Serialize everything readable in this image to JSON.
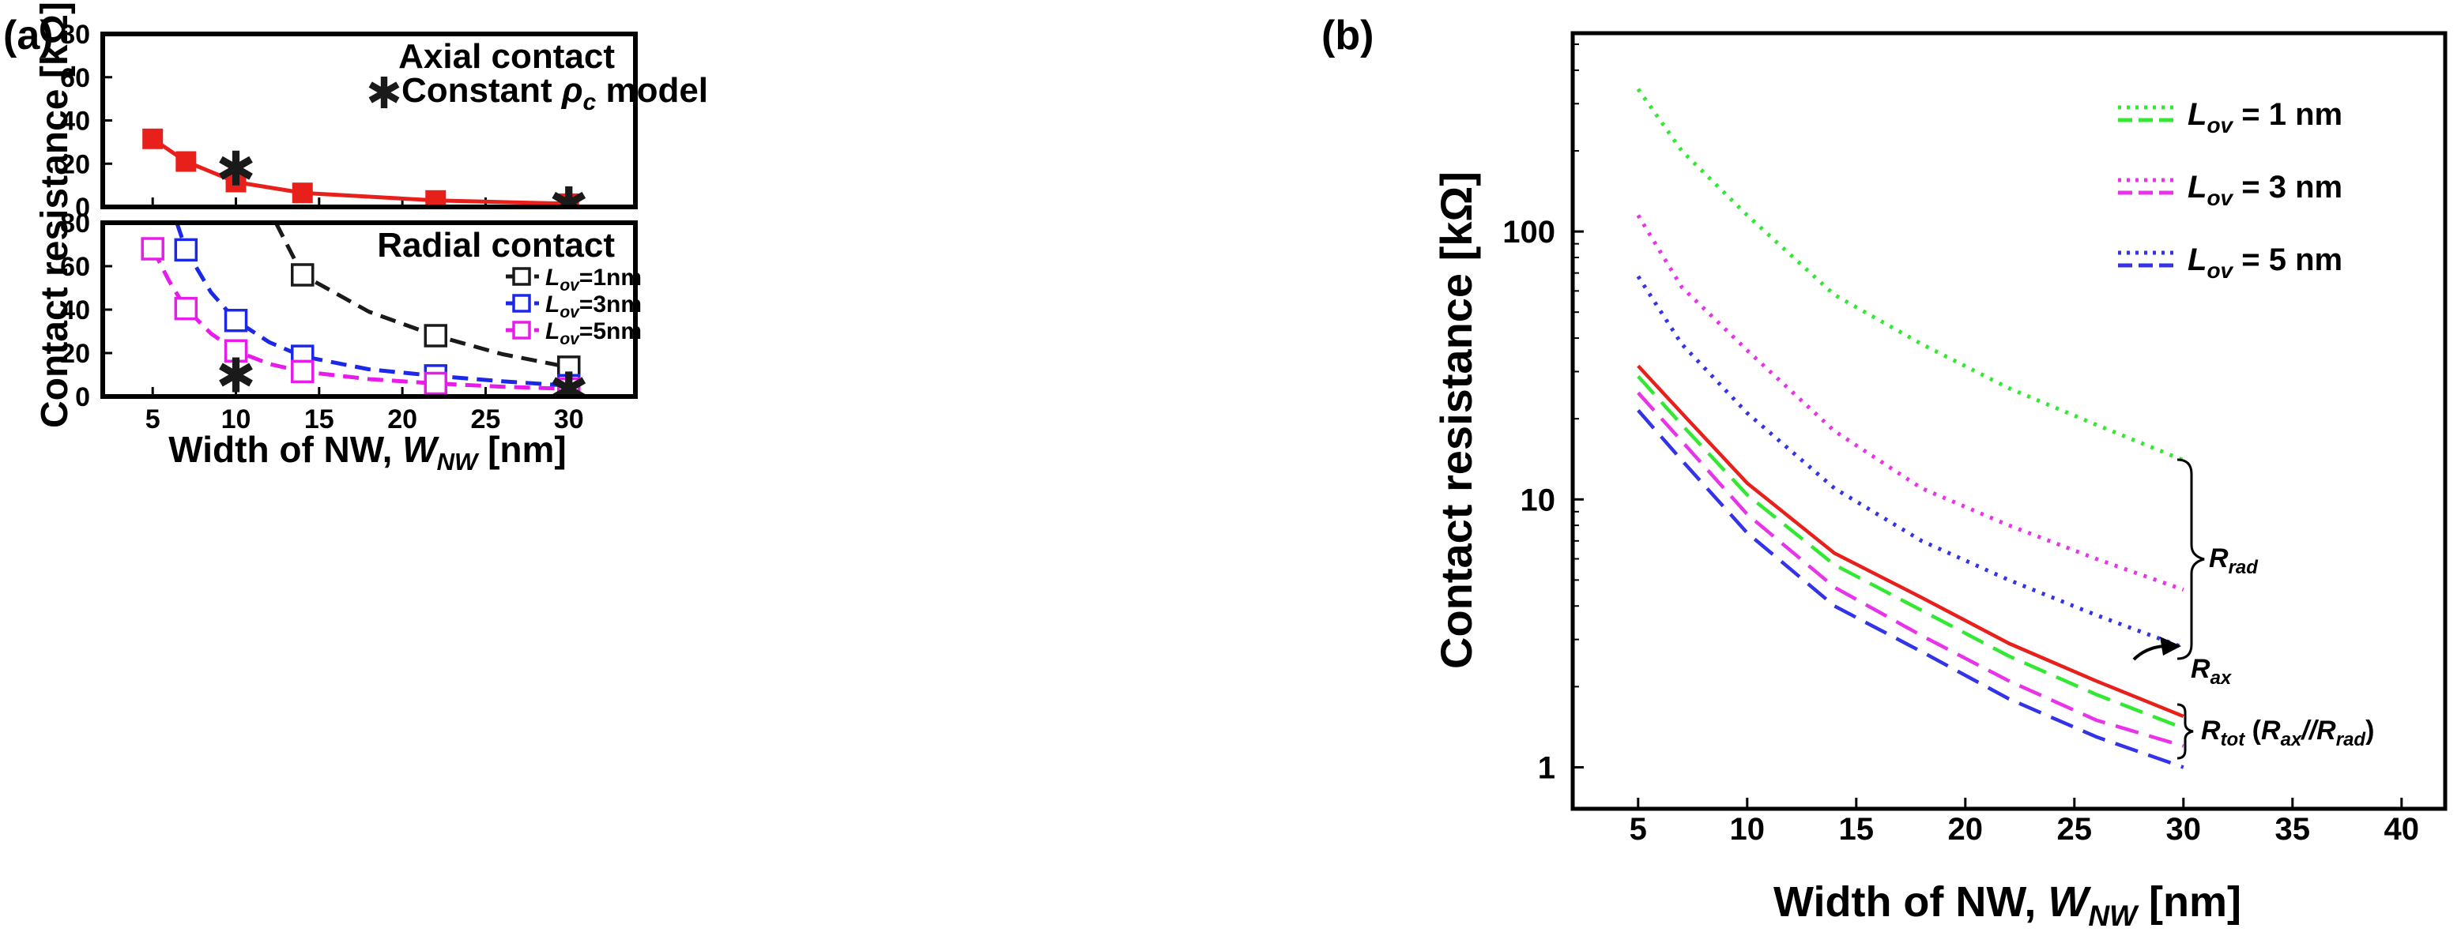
{
  "chart_data": [
    {
      "panel": "(a)",
      "type": "line",
      "ylabel": "Contact resistance [kΩ]",
      "xlabel": {
        "main": "Width of NW, ",
        "var": "W",
        "sub": "NW",
        "unit": " [nm]"
      },
      "xlim": [
        2,
        34
      ],
      "xticks": [
        5,
        10,
        15,
        20,
        25,
        30
      ],
      "subplots": [
        {
          "id": "axial",
          "title": "Axial contact",
          "ylim": [
            0,
            80
          ],
          "yticks": [
            0,
            20,
            40,
            60,
            80
          ],
          "series": [
            {
              "name": "Axial",
              "color": "#e8201c",
              "marker": "filled-square",
              "linestyle": "solid",
              "x": [
                5,
                7,
                10,
                14,
                22,
                30
              ],
              "y": [
                31.5,
                21,
                11.5,
                6.5,
                3,
                1.5
              ]
            },
            {
              "name": "Constant model",
              "color": "#1a1a1a",
              "marker": "star",
              "linestyle": "none",
              "x": [
                10,
                30
              ],
              "y": [
                18,
                1.5
              ]
            }
          ],
          "legend": {
            "star_label_prefix": "Constant ",
            "star_label_symbol": "ρ",
            "star_label_sub": "c",
            "star_label_suffix": " model"
          }
        },
        {
          "id": "radial",
          "title": "Radial contact",
          "ylim": [
            0,
            80
          ],
          "yticks": [
            0,
            20,
            40,
            60,
            80
          ],
          "series": [
            {
              "name": "Lov=1nm",
              "label_var": "L",
              "label_sub": "ov",
              "label_val": "=1nm",
              "color": "#1a1a1a",
              "marker": "open-square",
              "linestyle": "dashed",
              "x": [
                14,
                22,
                30
              ],
              "y": [
                56,
                28,
                13.5
              ],
              "curve_x": [
                12.4,
                14,
                18,
                22,
                26,
                30
              ],
              "curve_y": [
                80,
                56,
                39,
                28,
                19.5,
                13.5
              ]
            },
            {
              "name": "Lov=3nm",
              "label_var": "L",
              "label_sub": "ov",
              "label_val": "=3nm",
              "color": "#1c28e8",
              "marker": "open-square",
              "linestyle": "dashed",
              "x": [
                7,
                10,
                14,
                22,
                30
              ],
              "y": [
                67.5,
                35,
                18.5,
                9.5,
                5
              ],
              "curve_x": [
                6.45,
                7,
                8.5,
                10,
                12,
                14,
                18,
                22,
                26,
                30
              ],
              "curve_y": [
                80,
                67.5,
                48,
                35,
                25,
                18.5,
                12.5,
                9.5,
                7,
                5
              ]
            },
            {
              "name": "Lov=5nm",
              "label_var": "L",
              "label_sub": "ov",
              "label_val": "=5nm",
              "color": "#e81ce8",
              "marker": "open-square",
              "linestyle": "dashed",
              "x": [
                5,
                7,
                10,
                14,
                22,
                30
              ],
              "y": [
                68,
                40.5,
                21,
                11.5,
                6,
                3.5
              ],
              "curve_x": [
                5,
                6,
                7,
                8.5,
                10,
                12,
                14,
                18,
                22,
                26,
                30
              ],
              "curve_y": [
                68,
                53,
                40.5,
                29,
                21,
                15,
                11.5,
                8,
                6,
                4.5,
                3.5
              ]
            },
            {
              "name": "Constant model",
              "color": "#1a1a1a",
              "marker": "star",
              "linestyle": "none",
              "x": [
                10,
                30
              ],
              "y": [
                10,
                3.5
              ]
            }
          ]
        }
      ]
    },
    {
      "panel": "(b)",
      "type": "line",
      "yscale": "log",
      "ylabel": "Contact resistance [kΩ]",
      "xlabel": {
        "main": "Width of NW, ",
        "var": "W",
        "sub": "NW",
        "unit": " [nm]"
      },
      "xlim": [
        2,
        42
      ],
      "ylim": [
        0.7,
        550
      ],
      "xticks": [
        5,
        10,
        15,
        20,
        25,
        30,
        35,
        40
      ],
      "yticks": [
        1,
        10,
        100
      ],
      "ytick_labels": [
        "1",
        "10",
        "100"
      ],
      "legend": [
        {
          "var": "L",
          "sub": "ov",
          "val": " = 1 nm",
          "color": "#33e833"
        },
        {
          "var": "L",
          "sub": "ov",
          "val": " = 3 nm",
          "color": "#e833e8"
        },
        {
          "var": "L",
          "sub": "ov",
          "val": " = 5 nm",
          "color": "#3333e8"
        }
      ],
      "x": [
        5,
        7,
        10,
        14,
        18,
        22,
        26,
        30
      ],
      "series": [
        {
          "name": "Rrad Lov=1nm",
          "color": "#33e833",
          "linestyle": "dotted",
          "y": [
            340,
            200,
            115,
            58,
            38,
            26,
            19,
            14
          ]
        },
        {
          "name": "Rrad Lov=3nm",
          "color": "#e833e8",
          "linestyle": "dotted",
          "y": [
            115,
            62,
            36,
            18,
            11,
            8,
            6,
            4.6
          ]
        },
        {
          "name": "Rrad Lov=5nm",
          "color": "#3333e8",
          "linestyle": "dotted",
          "y": [
            68,
            38,
            21,
            11,
            7,
            5,
            3.7,
            2.8
          ]
        },
        {
          "name": "Rax",
          "color": "#e8201c",
          "linestyle": "solid",
          "y": [
            31.5,
            21,
            11.5,
            6.3,
            4.3,
            2.9,
            2.1,
            1.55
          ]
        },
        {
          "name": "Rtot Lov=1nm",
          "color": "#33e833",
          "linestyle": "dashed",
          "y": [
            28.8,
            19,
            10.4,
            5.7,
            3.85,
            2.6,
            1.87,
            1.4
          ]
        },
        {
          "name": "Rtot Lov=3nm",
          "color": "#e833e8",
          "linestyle": "dashed",
          "y": [
            25,
            16.5,
            8.8,
            4.7,
            3.1,
            2.1,
            1.5,
            1.2
          ]
        },
        {
          "name": "Rtot Lov=5nm",
          "color": "#3333e8",
          "linestyle": "dashed",
          "y": [
            21.5,
            14,
            7.5,
            4,
            2.7,
            1.8,
            1.3,
            1.0
          ]
        }
      ],
      "annotations": {
        "rrad": {
          "var": "R",
          "sub": "rad"
        },
        "rax": {
          "var": "R",
          "sub": "ax"
        },
        "rtot": {
          "var": "R",
          "sub": "tot",
          "paren_open": " (",
          "a": "R",
          "a_sub": "ax",
          "sep": "//",
          "b": "R",
          "b_sub": "rad",
          "paren_close": ")"
        }
      }
    }
  ]
}
